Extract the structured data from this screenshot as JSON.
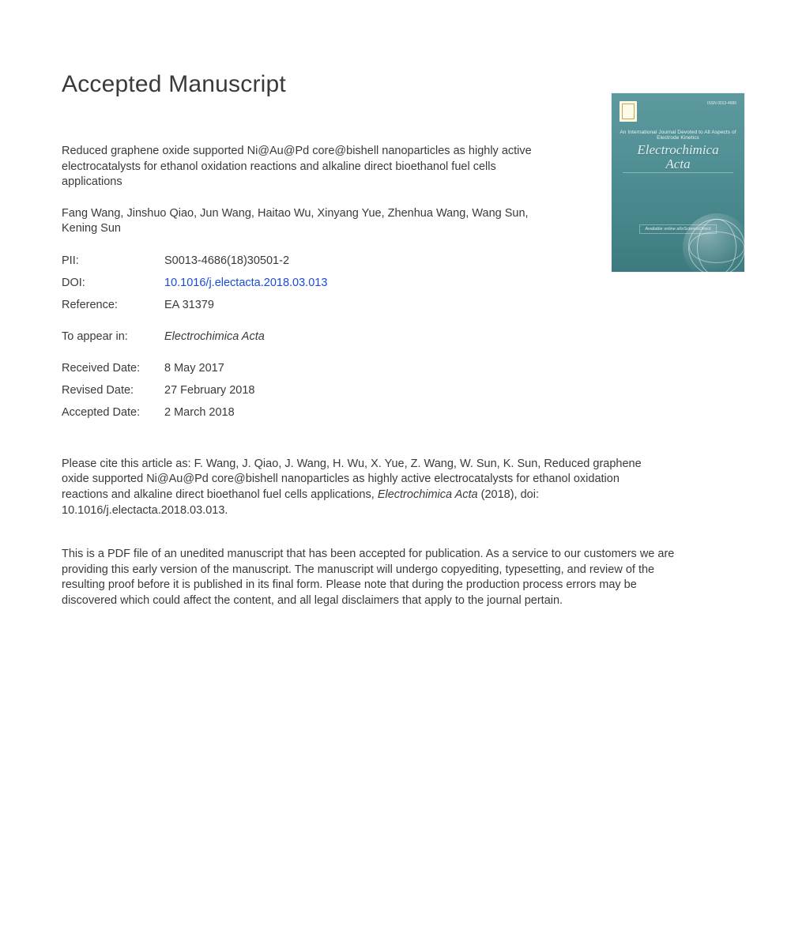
{
  "heading": "Accepted Manuscript",
  "article_title": "Reduced graphene oxide supported Ni@Au@Pd core@bishell nanoparticles as highly active electrocatalysts for ethanol oxidation reactions and alkaline direct bioethanol fuel cells applications",
  "authors": "Fang Wang, Jinshuo Qiao, Jun Wang, Haitao Wu, Xinyang Yue, Zhenhua Wang, Wang Sun, Kening Sun",
  "meta": {
    "pii_label": "PII:",
    "pii_value": "S0013-4686(18)30501-2",
    "doi_label": "DOI:",
    "doi_value": "10.1016/j.electacta.2018.03.013",
    "ref_label": "Reference:",
    "ref_value": "EA 31379",
    "appear_label": "To appear in:",
    "appear_value": "Electrochimica Acta",
    "received_label": "Received Date:",
    "received_value": "8 May 2017",
    "revised_label": "Revised Date:",
    "revised_value": "27 February 2018",
    "accepted_label": "Accepted Date:",
    "accepted_value": "2 March 2018"
  },
  "citation": {
    "lead": "Please cite this article as: F. Wang, J. Qiao, J. Wang, H. Wu, X. Yue, Z. Wang, W. Sun, K. Sun, Reduced graphene oxide supported Ni@Au@Pd core@bishell nanoparticles as highly active electrocatalysts for ethanol oxidation reactions and alkaline direct bioethanol fuel cells applications, ",
    "journal_italic": "Electrochimica Acta",
    "tail": " (2018), doi: 10.1016/j.electacta.2018.03.013."
  },
  "disclaimer": "This is a PDF file of an unedited manuscript that has been accepted for publication. As a service to our customers we are providing this early version of the manuscript. The manuscript will undergo copyediting, typesetting, and review of the resulting proof before it is published in its final form. Please note that during the production process errors may be discovered which could affect the content, and all legal disclaimers that apply to the journal pertain.",
  "cover": {
    "issn": "ISSN 0013-4686",
    "publisher_line": "An International Journal Devoted to All Aspects of Electrode Kinetics",
    "journal_line1": "Electrochimica",
    "journal_line2": "Acta",
    "sciencedirect": "Available online at\\nScienceDirect"
  },
  "colors": {
    "text": "#3a3a3a",
    "link": "#1a4bd6",
    "cover_bg_top": "#5d9aa0",
    "cover_bg_bottom": "#3c7a7f",
    "page_bg": "#ffffff"
  }
}
